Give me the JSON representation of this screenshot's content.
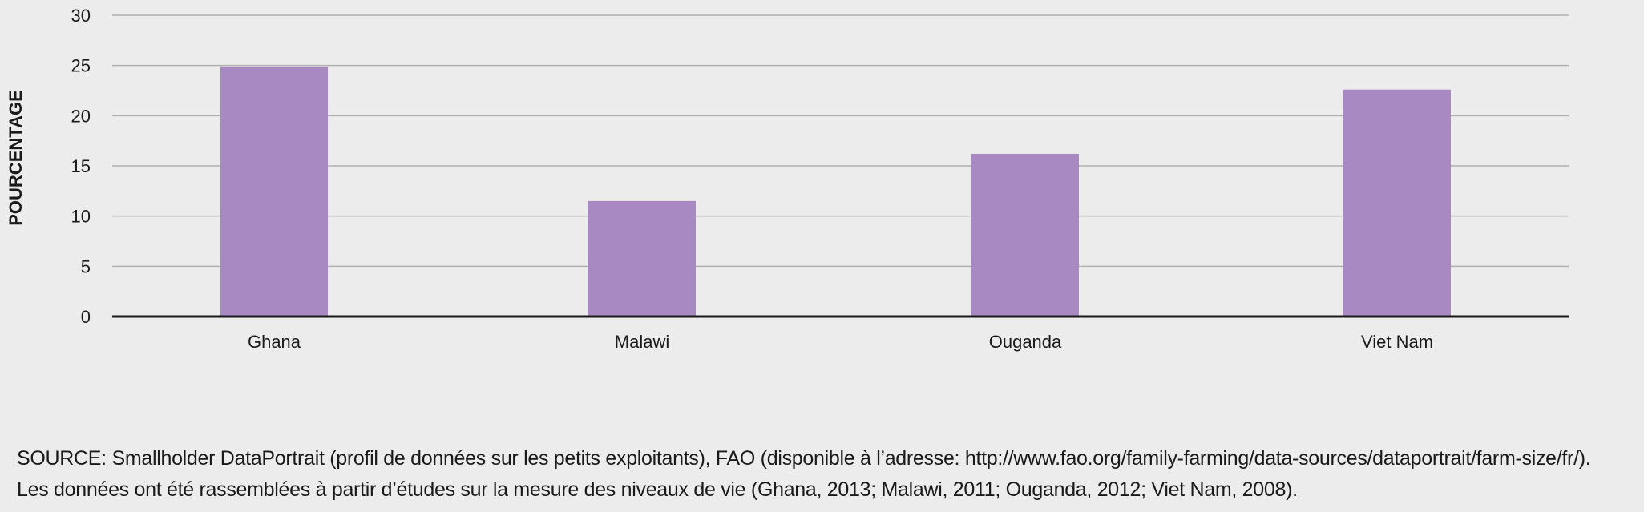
{
  "chart_data": {
    "type": "bar",
    "categories": [
      "Ghana",
      "Malawi",
      "Ouganda",
      "Viet Nam"
    ],
    "values": [
      24.9,
      11.5,
      16.2,
      22.6
    ],
    "ylabel": "POURCENTAGE",
    "ylim": [
      0,
      30
    ],
    "yticks": [
      0,
      5,
      10,
      15,
      20,
      25,
      30
    ],
    "grid": true,
    "bar_color": "#a989c1"
  },
  "source": {
    "line1": "SOURCE: Smallholder DataPortrait (profil de données sur les petits exploitants), FAO (disponible à l’adresse: http://www.fao.org/family-farming/data-sources/dataportrait/farm-size/fr/).",
    "line2": "Les données ont été rassemblées à partir d’études sur la mesure des niveaux de vie (Ghana, 2013; Malawi, 2011; Ouganda, 2012; Viet Nam, 2008)."
  }
}
